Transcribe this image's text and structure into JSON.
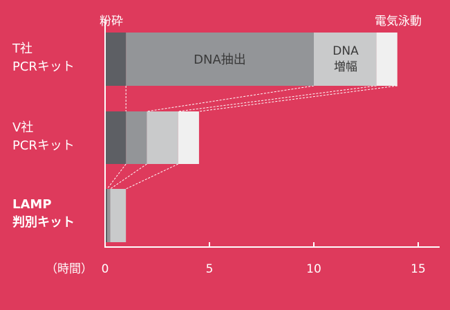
{
  "chart_data": {
    "type": "bar",
    "stacked": true,
    "orientation": "horizontal",
    "x_axis_label": "（時間）",
    "xlim": [
      0,
      15.5
    ],
    "x_ticks": [
      0,
      5,
      10,
      15
    ],
    "grid": false,
    "annotations": {
      "crush": "粉砕",
      "electrophoresis": "電気泳動",
      "dna_extraction": "DNA抽出",
      "dna_amplification_line1": "DNA",
      "dna_amplification_line2": "増幅"
    },
    "rows": [
      {
        "label_line1": "T社",
        "label_line2": "PCRキット",
        "bold": false,
        "segments": [
          {
            "stage": "粉砕",
            "start": 0,
            "end": 1.0
          },
          {
            "stage": "DNA抽出",
            "start": 1.0,
            "end": 10.0
          },
          {
            "stage": "DNA増幅",
            "start": 10.0,
            "end": 13.0
          },
          {
            "stage": "電気泳動",
            "start": 13.0,
            "end": 14.0
          }
        ]
      },
      {
        "label_line1": "V社",
        "label_line2": "PCRキット",
        "bold": false,
        "segments": [
          {
            "stage": "粉砕",
            "start": 0,
            "end": 1.0
          },
          {
            "stage": "DNA抽出",
            "start": 1.0,
            "end": 2.0
          },
          {
            "stage": "DNA増幅",
            "start": 2.0,
            "end": 3.5
          },
          {
            "stage": "電気泳動",
            "start": 3.5,
            "end": 4.5
          }
        ]
      },
      {
        "label_line1": "LAMP",
        "label_line2": "判別キット",
        "bold": true,
        "segments": [
          {
            "stage": "粉砕",
            "start": 0,
            "end": 0.1
          },
          {
            "stage": "DNA抽出",
            "start": 0.1,
            "end": 0.25
          },
          {
            "stage": "DNA増幅",
            "start": 0.25,
            "end": 1.0
          }
        ]
      }
    ],
    "stage_colors": {
      "粉砕": "#5D5F64",
      "DNA抽出": "#939598",
      "DNA増幅": "#C9CACB",
      "電気泳動": "#F0F0F0"
    },
    "colors": {
      "background": "#DE3A5C",
      "axis": "#FFFFFF",
      "connector": "#FFFFFF",
      "text": "#FFFFFF",
      "inner_text": "#3A3A3A"
    }
  }
}
